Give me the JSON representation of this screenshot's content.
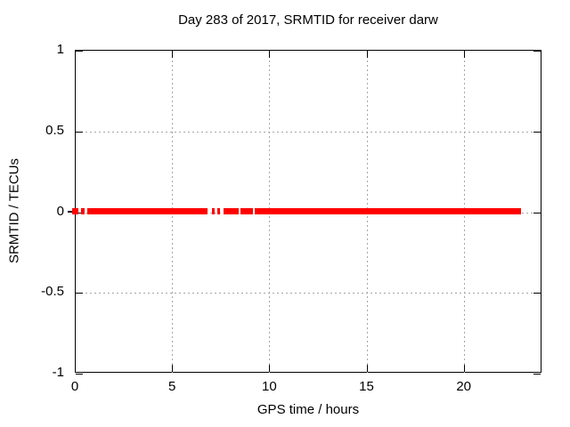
{
  "chart_data": {
    "type": "scatter",
    "title": "Day 283 of 2017, SRMTID for receiver darw",
    "xlabel": "GPS time / hours",
    "ylabel": "SRMTID / TECUs",
    "xlim": [
      0,
      24
    ],
    "ylim": [
      -1,
      1
    ],
    "xticks": [
      0,
      5,
      10,
      15,
      20
    ],
    "yticks": [
      1,
      0.5,
      0,
      -0.5,
      -1
    ],
    "grid": true,
    "legend_position": "none",
    "grid_color": "#a6a6a6",
    "axis_color": "#000000",
    "background_color": "#ffffff",
    "series": [
      {
        "name": "SRMTID",
        "color": "#ff0000",
        "marker": "filled-square",
        "y_value": 0,
        "x_segments_hours": [
          [
            -0.15,
            0.2
          ],
          [
            0.3,
            0.5
          ],
          [
            0.65,
            6.82
          ],
          [
            7.05,
            7.2
          ],
          [
            7.33,
            7.45
          ],
          [
            7.65,
            8.42
          ],
          [
            8.52,
            9.16
          ],
          [
            9.25,
            22.93
          ]
        ]
      }
    ]
  }
}
